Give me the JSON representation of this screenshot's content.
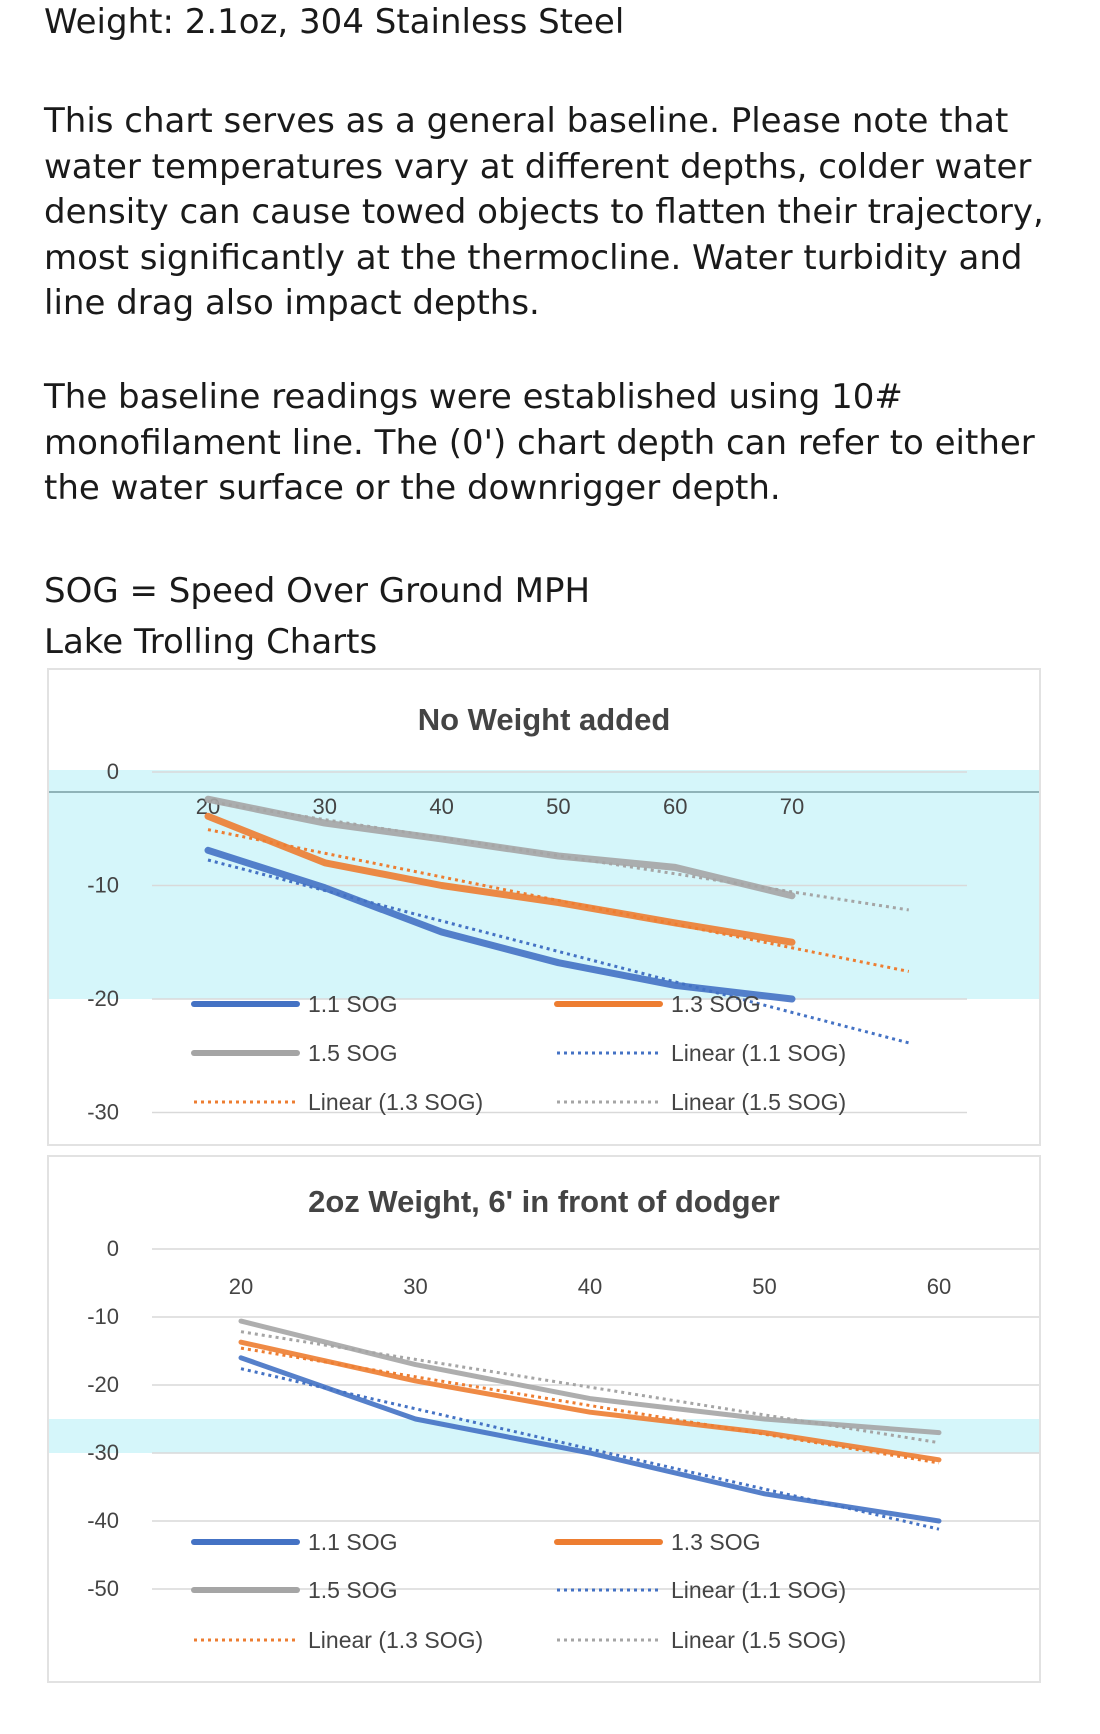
{
  "text": {
    "weight_line": "Weight: 2.1oz, 304 Stainless Steel",
    "para1": [
      "This chart serves as a general baseline. Please note that",
      "water temperatures vary at different depths, colder water",
      "density can cause towed objects to flatten their trajectory,",
      "most significantly at the thermocline. Water turbidity and",
      "line drag also impact depths."
    ],
    "para2": [
      "The baseline readings were established using 10#",
      "monofilament line. The (0') chart depth can refer to either",
      "the water surface or the downrigger depth."
    ],
    "sog_def": "SOG = Speed Over Ground MPH",
    "charts_heading": "Lake Trolling Charts"
  },
  "colors": {
    "s11": "#4472c4",
    "s13": "#ed7d31",
    "s15": "#a5a5a5",
    "band": "#d5f6fa",
    "grid": "#d9d9d9"
  },
  "chart_data": [
    {
      "type": "line",
      "title": "No Weight added",
      "x": [
        20,
        30,
        40,
        50,
        60,
        70
      ],
      "xlim": [
        20,
        80
      ],
      "ylim": [
        -30,
        0
      ],
      "yticks": [
        0,
        -10,
        -20,
        -30
      ],
      "xticks": [
        20,
        30,
        40,
        50,
        60,
        70
      ],
      "highlight_band": [
        0,
        -20
      ],
      "series": [
        {
          "name": "1.1 SOG",
          "color": "#4472c4",
          "values": [
            -6.9,
            -10.2,
            -14.1,
            -16.8,
            -18.8,
            -20.0
          ]
        },
        {
          "name": "1.3 SOG",
          "color": "#ed7d31",
          "values": [
            -3.9,
            -8.0,
            -10.0,
            -11.5,
            -13.3,
            -15.0
          ]
        },
        {
          "name": "1.5 SOG",
          "color": "#a5a5a5",
          "values": [
            -2.4,
            -4.5,
            -5.9,
            -7.4,
            -8.4,
            -10.9
          ]
        }
      ],
      "trendlines": [
        {
          "name": "Linear (1.1 SOG)",
          "of": 0,
          "color": "#4472c4"
        },
        {
          "name": "Linear (1.3 SOG)",
          "of": 1,
          "color": "#ed7d31"
        },
        {
          "name": "Linear (1.5 SOG)",
          "of": 2,
          "color": "#a5a5a5"
        }
      ],
      "legend": "bottom"
    },
    {
      "type": "line",
      "title": "2oz Weight, 6' in front of dodger",
      "x": [
        20,
        30,
        40,
        50,
        60
      ],
      "xlim": [
        20,
        60
      ],
      "ylim": [
        -50,
        0
      ],
      "yticks": [
        0,
        -10,
        -20,
        -30,
        -40,
        -50
      ],
      "xticks": [
        20,
        30,
        40,
        50,
        60
      ],
      "highlight_band": [
        -25,
        -30
      ],
      "series": [
        {
          "name": "1.1 SOG",
          "color": "#4472c4",
          "values": [
            -16,
            -25,
            -30,
            -36,
            -40
          ]
        },
        {
          "name": "1.3 SOG",
          "color": "#ed7d31",
          "values": [
            -13.7,
            -19.4,
            -24,
            -27,
            -31
          ]
        },
        {
          "name": "1.5 SOG",
          "color": "#a5a5a5",
          "values": [
            -10.6,
            -17,
            -22,
            -25,
            -27
          ]
        }
      ],
      "trendlines": [
        {
          "name": "Linear (1.1 SOG)",
          "of": 0,
          "color": "#4472c4"
        },
        {
          "name": "Linear (1.3 SOG)",
          "of": 1,
          "color": "#ed7d31"
        },
        {
          "name": "Linear (1.5 SOG)",
          "of": 2,
          "color": "#a5a5a5"
        }
      ],
      "legend": "bottom"
    }
  ]
}
